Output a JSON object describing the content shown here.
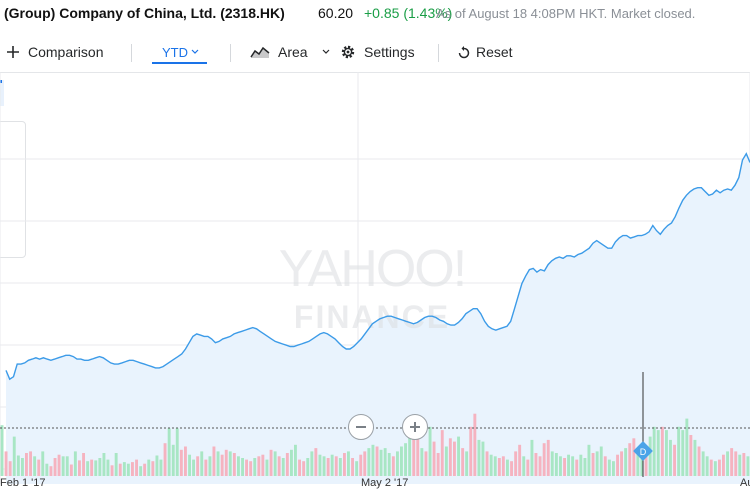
{
  "header": {
    "title": "(Group) Company of China, Ltd. (2318.HK)",
    "price": "60.20",
    "change": "+0.85 (1.43%)",
    "as_of": "As of August 18 4:08PM HKT. Market closed."
  },
  "toolbar": {
    "comparison_label": "Comparison",
    "range_label": "YTD",
    "chart_type_label": "Area",
    "settings_label": "Settings",
    "reset_label": "Reset"
  },
  "watermark": {
    "line1": "YAHOO!",
    "line2": "FINANCE"
  },
  "colors": {
    "line": "#3c9be8",
    "area_fill": "#e9f3fd",
    "volume_up": "#a8e6c4",
    "volume_down": "#f5b3c0",
    "positive_text": "#1a9e46",
    "accent": "#1a73e8",
    "dividend_marker": "#4aa3e8"
  },
  "markers": {
    "dividend_label": "D"
  },
  "chart_data": {
    "type": "area",
    "title": "",
    "x_labels": [
      "Feb 1 '17",
      "May 2 '17",
      "Au"
    ],
    "grid": true,
    "price_series": [
      33,
      26,
      28,
      38,
      38,
      39,
      41,
      42,
      43,
      42,
      43,
      42,
      41,
      42,
      43,
      44,
      45,
      45,
      44,
      42,
      42,
      41,
      41,
      42,
      43,
      44,
      43,
      41,
      39,
      38,
      38,
      39,
      40,
      41,
      41,
      40,
      39,
      38,
      37,
      36,
      35,
      35,
      36,
      38,
      40,
      42,
      44,
      46,
      50,
      55,
      60,
      62,
      61,
      60,
      60,
      58,
      55,
      56,
      58,
      59,
      60,
      62,
      63,
      64,
      65,
      66,
      67,
      66,
      64,
      62,
      60,
      58,
      56,
      55,
      54,
      53,
      52,
      52,
      53,
      54,
      55,
      56,
      58,
      60,
      62,
      63,
      62,
      60,
      58,
      55,
      52,
      50,
      50,
      52,
      55,
      58,
      62,
      66,
      70,
      72,
      74,
      75,
      76,
      76,
      75,
      74,
      73,
      72,
      71,
      70,
      71,
      73,
      75,
      76,
      76,
      75,
      73,
      72,
      70,
      69,
      69,
      71,
      74,
      78,
      80,
      82,
      82,
      78,
      72,
      68,
      66,
      65,
      66,
      67,
      68,
      72,
      82,
      92,
      102,
      108,
      113,
      114,
      111,
      113,
      112,
      117,
      120,
      122,
      123,
      122,
      124,
      124,
      123,
      125,
      126,
      128,
      130,
      134,
      136,
      134,
      132,
      130,
      130,
      135,
      138,
      140,
      140,
      138,
      139,
      140,
      140,
      141,
      143,
      148,
      144,
      141,
      145,
      148,
      150,
      155,
      162,
      168,
      172,
      175,
      177,
      178,
      178,
      175,
      172,
      173,
      176,
      174,
      176,
      177,
      176,
      180,
      186,
      200,
      205,
      198
    ],
    "volume_series": [
      {
        "v": 62,
        "d": "u"
      },
      {
        "v": 30,
        "d": "d"
      },
      {
        "v": 18,
        "d": "d"
      },
      {
        "v": 48,
        "d": "u"
      },
      {
        "v": 25,
        "d": "u"
      },
      {
        "v": 22,
        "d": "u"
      },
      {
        "v": 28,
        "d": "d"
      },
      {
        "v": 30,
        "d": "d"
      },
      {
        "v": 24,
        "d": "u"
      },
      {
        "v": 20,
        "d": "d"
      },
      {
        "v": 30,
        "d": "u"
      },
      {
        "v": 15,
        "d": "u"
      },
      {
        "v": 12,
        "d": "d"
      },
      {
        "v": 22,
        "d": "d"
      },
      {
        "v": 26,
        "d": "d"
      },
      {
        "v": 24,
        "d": "u"
      },
      {
        "v": 24,
        "d": "u"
      },
      {
        "v": 14,
        "d": "d"
      },
      {
        "v": 30,
        "d": "u"
      },
      {
        "v": 19,
        "d": "d"
      },
      {
        "v": 28,
        "d": "d"
      },
      {
        "v": 18,
        "d": "u"
      },
      {
        "v": 20,
        "d": "d"
      },
      {
        "v": 19,
        "d": "u"
      },
      {
        "v": 22,
        "d": "u"
      },
      {
        "v": 28,
        "d": "u"
      },
      {
        "v": 20,
        "d": "u"
      },
      {
        "v": 13,
        "d": "d"
      },
      {
        "v": 28,
        "d": "u"
      },
      {
        "v": 15,
        "d": "d"
      },
      {
        "v": 17,
        "d": "u"
      },
      {
        "v": 15,
        "d": "u"
      },
      {
        "v": 17,
        "d": "d"
      },
      {
        "v": 20,
        "d": "d"
      },
      {
        "v": 12,
        "d": "u"
      },
      {
        "v": 15,
        "d": "d"
      },
      {
        "v": 20,
        "d": "u"
      },
      {
        "v": 18,
        "d": "d"
      },
      {
        "v": 25,
        "d": "u"
      },
      {
        "v": 20,
        "d": "u"
      },
      {
        "v": 40,
        "d": "d"
      },
      {
        "v": 58,
        "d": "u"
      },
      {
        "v": 38,
        "d": "u"
      },
      {
        "v": 58,
        "d": "u"
      },
      {
        "v": 32,
        "d": "d"
      },
      {
        "v": 36,
        "d": "d"
      },
      {
        "v": 26,
        "d": "u"
      },
      {
        "v": 20,
        "d": "u"
      },
      {
        "v": 24,
        "d": "d"
      },
      {
        "v": 30,
        "d": "u"
      },
      {
        "v": 20,
        "d": "d"
      },
      {
        "v": 24,
        "d": "u"
      },
      {
        "v": 36,
        "d": "d"
      },
      {
        "v": 30,
        "d": "u"
      },
      {
        "v": 26,
        "d": "d"
      },
      {
        "v": 32,
        "d": "d"
      },
      {
        "v": 30,
        "d": "u"
      },
      {
        "v": 28,
        "d": "d"
      },
      {
        "v": 24,
        "d": "u"
      },
      {
        "v": 22,
        "d": "u"
      },
      {
        "v": 20,
        "d": "d"
      },
      {
        "v": 18,
        "d": "d"
      },
      {
        "v": 22,
        "d": "u"
      },
      {
        "v": 24,
        "d": "d"
      },
      {
        "v": 26,
        "d": "d"
      },
      {
        "v": 20,
        "d": "u"
      },
      {
        "v": 32,
        "d": "d"
      },
      {
        "v": 30,
        "d": "u"
      },
      {
        "v": 24,
        "d": "d"
      },
      {
        "v": 22,
        "d": "u"
      },
      {
        "v": 28,
        "d": "d"
      },
      {
        "v": 32,
        "d": "u"
      },
      {
        "v": 38,
        "d": "u"
      },
      {
        "v": 20,
        "d": "d"
      },
      {
        "v": 18,
        "d": "d"
      },
      {
        "v": 22,
        "d": "u"
      },
      {
        "v": 30,
        "d": "u"
      },
      {
        "v": 34,
        "d": "d"
      },
      {
        "v": 26,
        "d": "u"
      },
      {
        "v": 24,
        "d": "u"
      },
      {
        "v": 22,
        "d": "d"
      },
      {
        "v": 26,
        "d": "u"
      },
      {
        "v": 24,
        "d": "d"
      },
      {
        "v": 22,
        "d": "u"
      },
      {
        "v": 28,
        "d": "d"
      },
      {
        "v": 30,
        "d": "u"
      },
      {
        "v": 22,
        "d": "d"
      },
      {
        "v": 18,
        "d": "u"
      },
      {
        "v": 26,
        "d": "d"
      },
      {
        "v": 30,
        "d": "d"
      },
      {
        "v": 34,
        "d": "u"
      },
      {
        "v": 38,
        "d": "u"
      },
      {
        "v": 36,
        "d": "d"
      },
      {
        "v": 32,
        "d": "u"
      },
      {
        "v": 34,
        "d": "u"
      },
      {
        "v": 28,
        "d": "u"
      },
      {
        "v": 24,
        "d": "d"
      },
      {
        "v": 30,
        "d": "u"
      },
      {
        "v": 36,
        "d": "u"
      },
      {
        "v": 40,
        "d": "u"
      },
      {
        "v": 60,
        "d": "u"
      },
      {
        "v": 50,
        "d": "d"
      },
      {
        "v": 48,
        "d": "d"
      },
      {
        "v": 34,
        "d": "u"
      },
      {
        "v": 30,
        "d": "d"
      },
      {
        "v": 60,
        "d": "u"
      },
      {
        "v": 42,
        "d": "d"
      },
      {
        "v": 28,
        "d": "d"
      },
      {
        "v": 56,
        "d": "d"
      },
      {
        "v": 36,
        "d": "u"
      },
      {
        "v": 46,
        "d": "d"
      },
      {
        "v": 42,
        "d": "d"
      },
      {
        "v": 48,
        "d": "u"
      },
      {
        "v": 34,
        "d": "d"
      },
      {
        "v": 30,
        "d": "u"
      },
      {
        "v": 60,
        "d": "d"
      },
      {
        "v": 76,
        "d": "d"
      },
      {
        "v": 44,
        "d": "u"
      },
      {
        "v": 42,
        "d": "u"
      },
      {
        "v": 30,
        "d": "d"
      },
      {
        "v": 26,
        "d": "u"
      },
      {
        "v": 24,
        "d": "u"
      },
      {
        "v": 22,
        "d": "d"
      },
      {
        "v": 24,
        "d": "d"
      },
      {
        "v": 20,
        "d": "u"
      },
      {
        "v": 18,
        "d": "d"
      },
      {
        "v": 30,
        "d": "d"
      },
      {
        "v": 38,
        "d": "d"
      },
      {
        "v": 24,
        "d": "u"
      },
      {
        "v": 20,
        "d": "d"
      },
      {
        "v": 44,
        "d": "u"
      },
      {
        "v": 28,
        "d": "d"
      },
      {
        "v": 24,
        "d": "d"
      },
      {
        "v": 40,
        "d": "d"
      },
      {
        "v": 44,
        "d": "d"
      },
      {
        "v": 30,
        "d": "u"
      },
      {
        "v": 28,
        "d": "u"
      },
      {
        "v": 24,
        "d": "u"
      },
      {
        "v": 22,
        "d": "d"
      },
      {
        "v": 26,
        "d": "u"
      },
      {
        "v": 24,
        "d": "u"
      },
      {
        "v": 20,
        "d": "d"
      },
      {
        "v": 26,
        "d": "u"
      },
      {
        "v": 22,
        "d": "u"
      },
      {
        "v": 38,
        "d": "u"
      },
      {
        "v": 28,
        "d": "d"
      },
      {
        "v": 30,
        "d": "u"
      },
      {
        "v": 36,
        "d": "u"
      },
      {
        "v": 24,
        "d": "d"
      },
      {
        "v": 20,
        "d": "u"
      },
      {
        "v": 18,
        "d": "u"
      },
      {
        "v": 26,
        "d": "d"
      },
      {
        "v": 30,
        "d": "d"
      },
      {
        "v": 34,
        "d": "u"
      },
      {
        "v": 40,
        "d": "d"
      },
      {
        "v": 46,
        "d": "d"
      },
      {
        "v": 28,
        "d": "u"
      },
      {
        "v": 24,
        "d": "u"
      },
      {
        "v": 36,
        "d": "d"
      },
      {
        "v": 48,
        "d": "u"
      },
      {
        "v": 60,
        "d": "u"
      },
      {
        "v": 56,
        "d": "u"
      },
      {
        "v": 60,
        "d": "d"
      },
      {
        "v": 56,
        "d": "u"
      },
      {
        "v": 44,
        "d": "u"
      },
      {
        "v": 38,
        "d": "d"
      },
      {
        "v": 60,
        "d": "u"
      },
      {
        "v": 56,
        "d": "u"
      },
      {
        "v": 70,
        "d": "u"
      },
      {
        "v": 50,
        "d": "d"
      },
      {
        "v": 44,
        "d": "u"
      },
      {
        "v": 36,
        "d": "d"
      },
      {
        "v": 30,
        "d": "u"
      },
      {
        "v": 24,
        "d": "u"
      },
      {
        "v": 20,
        "d": "d"
      },
      {
        "v": 18,
        "d": "u"
      },
      {
        "v": 20,
        "d": "d"
      },
      {
        "v": 26,
        "d": "d"
      },
      {
        "v": 30,
        "d": "u"
      },
      {
        "v": 34,
        "d": "d"
      },
      {
        "v": 30,
        "d": "d"
      },
      {
        "v": 26,
        "d": "u"
      },
      {
        "v": 28,
        "d": "d"
      },
      {
        "v": 24,
        "d": "u"
      }
    ]
  }
}
